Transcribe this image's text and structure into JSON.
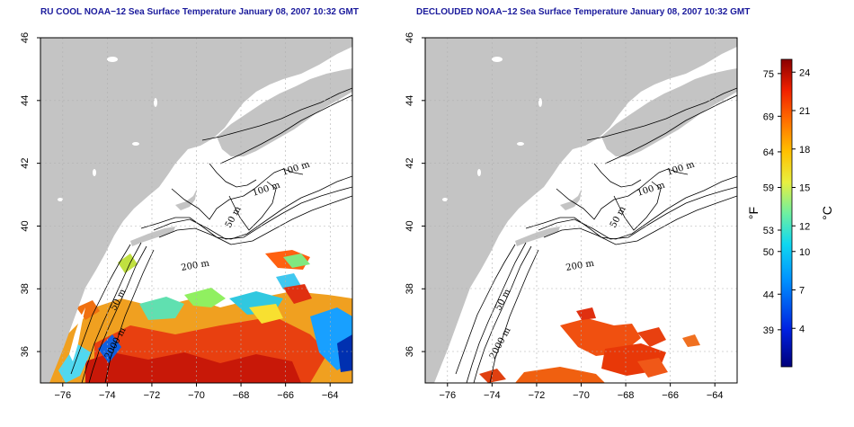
{
  "titles": {
    "left": "RU COOL NOAA−12 Sea Surface Temperature January 08, 2007 10:32 GMT",
    "right": "DECLOUDED NOAA−12 Sea Surface Temperature January 08, 2007 10:32 GMT"
  },
  "axes": {
    "x_ticks": [
      "−76",
      "−74",
      "−72",
      "−70",
      "−68",
      "−66",
      "−64"
    ],
    "y_ticks": [
      "36",
      "38",
      "40",
      "42",
      "44",
      "46"
    ]
  },
  "contour_labels": {
    "m100a": "100 m",
    "m100b": "100 m",
    "m50a": "50 m",
    "m200": "200 m",
    "m50b": "50 m",
    "m2000": "2000 m"
  },
  "colorbar": {
    "f_unit": "°F",
    "c_unit": "°C",
    "f_ticks": [
      "75",
      "69",
      "64",
      "59",
      "53",
      "50",
      "44",
      "39"
    ],
    "c_ticks": [
      "24",
      "21",
      "18",
      "15",
      "12",
      "10",
      "7",
      "4"
    ]
  },
  "colors": {
    "land": "#c4c4c4",
    "title": "#1a1a9c",
    "grid": "#b0b0b0"
  },
  "chart_data": {
    "type": "heatmap",
    "panels": [
      "RU COOL",
      "DECLOUDED"
    ],
    "xlim": [
      -77,
      -63
    ],
    "ylim": [
      35,
      46
    ],
    "x_ticks": [
      -76,
      -74,
      -72,
      -70,
      -68,
      -66,
      -64
    ],
    "y_ticks": [
      36,
      38,
      40,
      42,
      44,
      46
    ],
    "colorbar_c_range": [
      1,
      25
    ],
    "colorbar_c_ticks": [
      4,
      7,
      10,
      12,
      15,
      18,
      21,
      24
    ],
    "colorbar_f_ticks": [
      39,
      44,
      50,
      53,
      59,
      64,
      69,
      75
    ],
    "contours_m": [
      50,
      100,
      200,
      2000
    ],
    "grid": true
  }
}
